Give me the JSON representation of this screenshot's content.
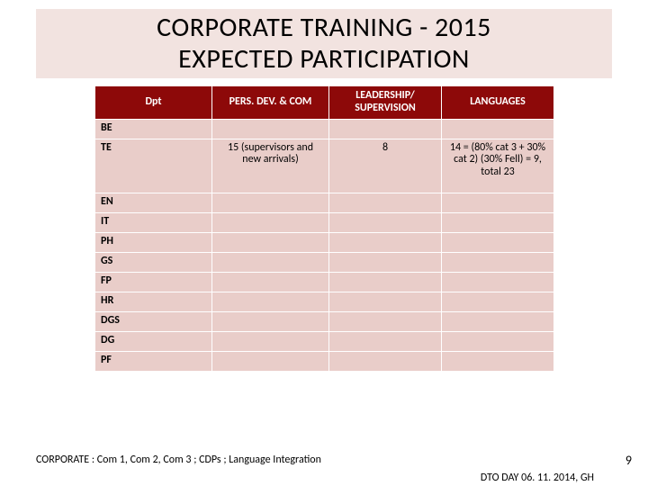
{
  "title_line1": "CORPORATE TRAINING - 2015",
  "title_line2": "EXPECTED PARTICIPATION",
  "columns": {
    "c0": "Dpt",
    "c1": "PERS. DEV. & COM",
    "c2": "LEADERSHIP/ SUPERVISION",
    "c3": "LANGUAGES"
  },
  "rows": [
    {
      "dpt": "BE",
      "c1": "",
      "c2": "",
      "c3": "",
      "cls": "short"
    },
    {
      "dpt": "TE",
      "c1": "15 (supervisors and new arrivals)",
      "c2": "8",
      "c3": "14 = (80% cat 3 + 30% cat 2) (30% Fell) = 9, total 23",
      "cls": "te"
    },
    {
      "dpt": "EN",
      "c1": "",
      "c2": "",
      "c3": "",
      "cls": "short"
    },
    {
      "dpt": "IT",
      "c1": "",
      "c2": "",
      "c3": "",
      "cls": "short"
    },
    {
      "dpt": "PH",
      "c1": "",
      "c2": "",
      "c3": "",
      "cls": "short"
    },
    {
      "dpt": "GS",
      "c1": "",
      "c2": "",
      "c3": "",
      "cls": "short"
    },
    {
      "dpt": "FP",
      "c1": "",
      "c2": "",
      "c3": "",
      "cls": "short"
    },
    {
      "dpt": "HR",
      "c1": "",
      "c2": "",
      "c3": "",
      "cls": "short"
    },
    {
      "dpt": "DGS",
      "c1": "",
      "c2": "",
      "c3": "",
      "cls": "short"
    },
    {
      "dpt": "DG",
      "c1": "",
      "c2": "",
      "c3": "",
      "cls": "short"
    },
    {
      "dpt": "PF",
      "c1": "",
      "c2": "",
      "c3": "",
      "cls": "short"
    }
  ],
  "footnote": "CORPORATE : Com 1, Com 2, Com 3 ; CDPs ; Language Integration",
  "date_note": "DTO DAY 06. 11. 2014, GH",
  "page_num": "9",
  "colors": {
    "header_bg": "#8d0909",
    "cell_bg": "#e9cdc9",
    "title_bg": "#f2e3e0"
  }
}
